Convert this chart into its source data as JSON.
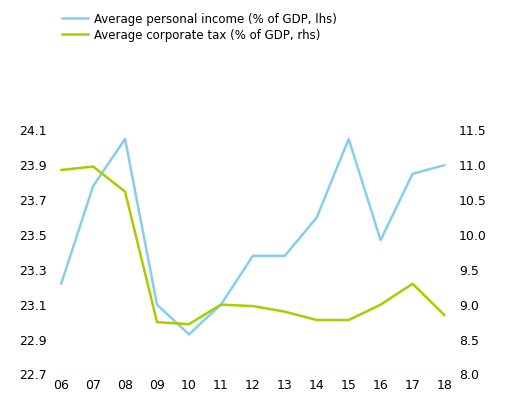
{
  "years": [
    6,
    7,
    8,
    9,
    10,
    11,
    12,
    13,
    14,
    15,
    16,
    17,
    18
  ],
  "personal_income": [
    23.22,
    23.78,
    24.05,
    23.1,
    22.93,
    23.1,
    23.38,
    23.38,
    23.6,
    24.05,
    23.47,
    23.85,
    23.9
  ],
  "corporate_tax": [
    10.93,
    10.98,
    10.62,
    8.75,
    8.72,
    9.0,
    8.98,
    8.9,
    8.78,
    8.78,
    9.0,
    9.3,
    8.85
  ],
  "personal_color": "#87CEEB",
  "corporate_color": "#AACC00",
  "left_ylim": [
    22.7,
    24.1
  ],
  "right_ylim": [
    8.0,
    11.5
  ],
  "left_yticks": [
    22.7,
    22.9,
    23.1,
    23.3,
    23.5,
    23.7,
    23.9,
    24.1
  ],
  "right_yticks": [
    8.0,
    8.5,
    9.0,
    9.5,
    10.0,
    10.5,
    11.0,
    11.5
  ],
  "legend_label_personal": "Average personal income (% of GDP, lhs)",
  "legend_label_corporate": "Average corporate tax (% of GDP, rhs)",
  "xtick_labels": [
    "06",
    "07",
    "08",
    "09",
    "10",
    "11",
    "12",
    "13",
    "14",
    "15",
    "16",
    "17",
    "18"
  ],
  "figsize": [
    5.16,
    4.07
  ],
  "dpi": 100,
  "linewidth": 1.8,
  "grid_color": "#cccccc",
  "background_color": "#ffffff",
  "legend_fontsize": 8.5,
  "tick_fontsize": 9
}
